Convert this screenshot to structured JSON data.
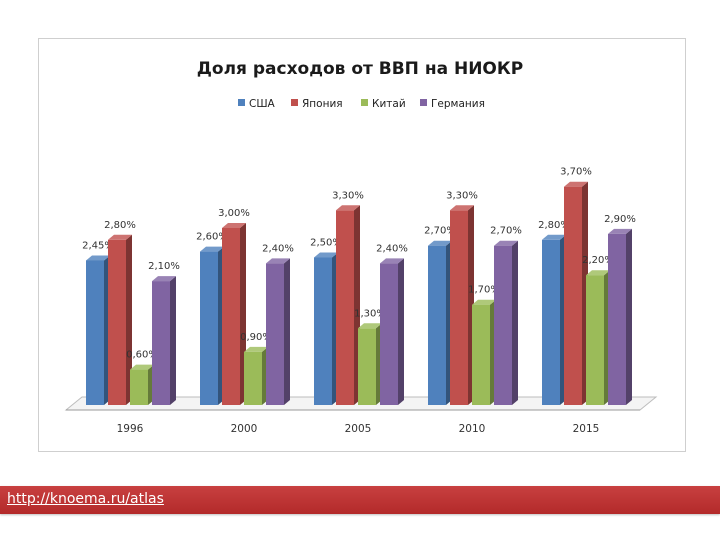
{
  "chart_data": {
    "type": "bar",
    "title": "Доля расходов от ВВП на НИОКР",
    "xlabel": "",
    "ylabel": "",
    "ylim": [
      0,
      4
    ],
    "grid": false,
    "legend_position": "top",
    "categories": [
      "1996",
      "2000",
      "2005",
      "2010",
      "2015"
    ],
    "series": [
      {
        "name": "США",
        "color": "#4f81bd",
        "values": [
          2.45,
          2.6,
          2.5,
          2.7,
          2.8
        ],
        "labels": [
          "2,45%",
          "2,60%",
          "2,50%",
          "2,70%",
          "2,80%"
        ]
      },
      {
        "name": "Япония",
        "color": "#c0504d",
        "values": [
          2.8,
          3.0,
          3.3,
          3.3,
          3.7
        ],
        "labels": [
          "2,80%",
          "3,00%",
          "3,30%",
          "3,30%",
          "3,70%"
        ]
      },
      {
        "name": "Китай",
        "color": "#9bbb59",
        "values": [
          0.6,
          0.9,
          1.3,
          1.7,
          2.2
        ],
        "labels": [
          "0,60%",
          "0,90%",
          "1,30%",
          "1,70%",
          "2,20%"
        ]
      },
      {
        "name": "Германия",
        "color": "#8064a2",
        "values": [
          2.1,
          2.4,
          2.4,
          2.7,
          2.9
        ],
        "labels": [
          "2,10%",
          "2,40%",
          "2,40%",
          "2,70%",
          "2,90%"
        ]
      }
    ]
  },
  "footer": {
    "link_text": "http://knoema.ru/atlas"
  }
}
